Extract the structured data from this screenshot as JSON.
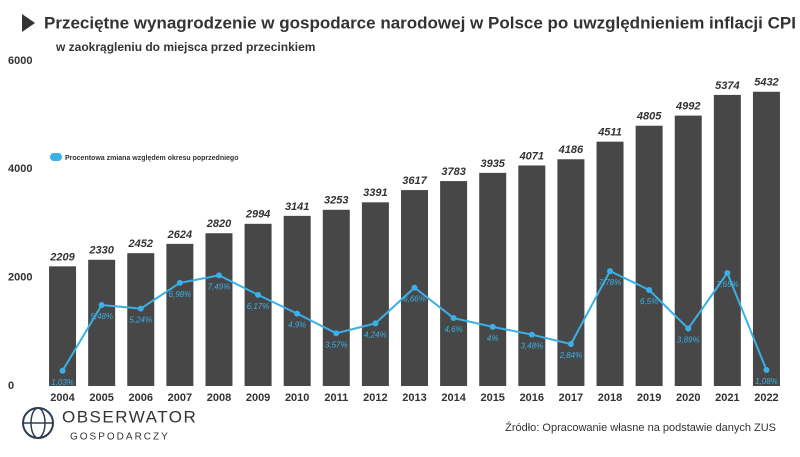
{
  "chart_data": {
    "type": "bar",
    "title": "Przeciętne wynagrodzenie w gospodarce narodowej w Polsce po uwzględnieniem inflacji CPI",
    "subtitle": "w zaokrągleniu do miejsca przed przecinkiem",
    "categories": [
      "2004",
      "2005",
      "2006",
      "2007",
      "2008",
      "2009",
      "2010",
      "2011",
      "2012",
      "2013",
      "2014",
      "2015",
      "2016",
      "2017",
      "2018",
      "2019",
      "2020",
      "2021",
      "2022"
    ],
    "series": [
      {
        "type": "bar",
        "color": "#474747",
        "values": [
          2209,
          2330,
          2452,
          2624,
          2820,
          2994,
          3141,
          3253,
          3391,
          3617,
          3783,
          3935,
          4071,
          4186,
          4511,
          4805,
          4992,
          5374,
          5432
        ]
      },
      {
        "type": "line",
        "name": "Procentowa zmiana względem okresu poprzedniego",
        "color": "#3ab0e6",
        "axis": "y2",
        "values": [
          1.03,
          5.48,
          5.24,
          6.98,
          7.49,
          6.17,
          4.9,
          3.57,
          4.24,
          6.66,
          4.6,
          4,
          3.48,
          2.84,
          7.78,
          6.5,
          3.89,
          7.65,
          1.08
        ],
        "value_labels": [
          "1,03%",
          "5,48%",
          "5,24%",
          "6,98%",
          "7,49%",
          "6,17%",
          "4,9%",
          "3,57%",
          "4,24%",
          "6,66%",
          "4,6%",
          "4%",
          "3,48%",
          "2,84%",
          "7,78%",
          "6,5%",
          "3,89%",
          "7,65%",
          "1,08%"
        ]
      }
    ],
    "ylim": [
      0,
      6000
    ],
    "yticks": [
      0,
      2000,
      4000,
      6000
    ],
    "y2lim": [
      0,
      22
    ],
    "grid": false,
    "source": "Źródło: Opracowanie własne na podstawie danych ZUS",
    "logo": {
      "name": "OBSERWATOR",
      "tagline": "GOSPODARCZY"
    }
  }
}
